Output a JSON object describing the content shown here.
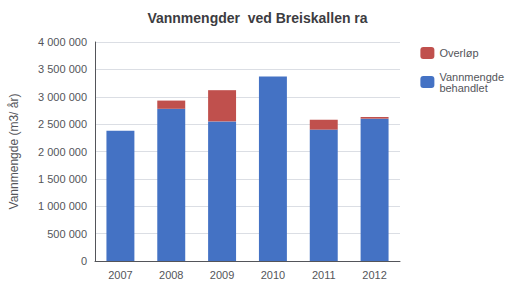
{
  "chart_data": {
    "type": "bar",
    "stacked": true,
    "title": "Vannmengder  ved Breiskallen ra",
    "ylabel": "Vannmengde (m3/ år)",
    "categories": [
      "2007",
      "2008",
      "2009",
      "2010",
      "2011",
      "2012"
    ],
    "series": [
      {
        "name": "Vannmengde\nbehandlet",
        "color": "#4472C4",
        "values": [
          2380000,
          2780000,
          2550000,
          3370000,
          2400000,
          2600000
        ]
      },
      {
        "name": "Overløp",
        "color": "#C0504D",
        "values": [
          0,
          150000,
          570000,
          0,
          180000,
          30000
        ]
      }
    ],
    "ylim": [
      0,
      4000000
    ],
    "yticks": [
      0,
      {
        "value": 500000,
        "label": "500 000"
      },
      {
        "value": 1000000,
        "label": "1 000 000"
      },
      {
        "value": 1500000,
        "label": "1 500 000"
      },
      {
        "value": 2000000,
        "label": "2 000 000"
      },
      {
        "value": 2500000,
        "label": "2 500 000"
      },
      {
        "value": 3000000,
        "label": "3 000 000"
      },
      {
        "value": 3500000,
        "label": "3 500 000"
      },
      {
        "value": 4000000,
        "label": "4 000 000"
      }
    ],
    "grid": true,
    "legend": "right"
  }
}
